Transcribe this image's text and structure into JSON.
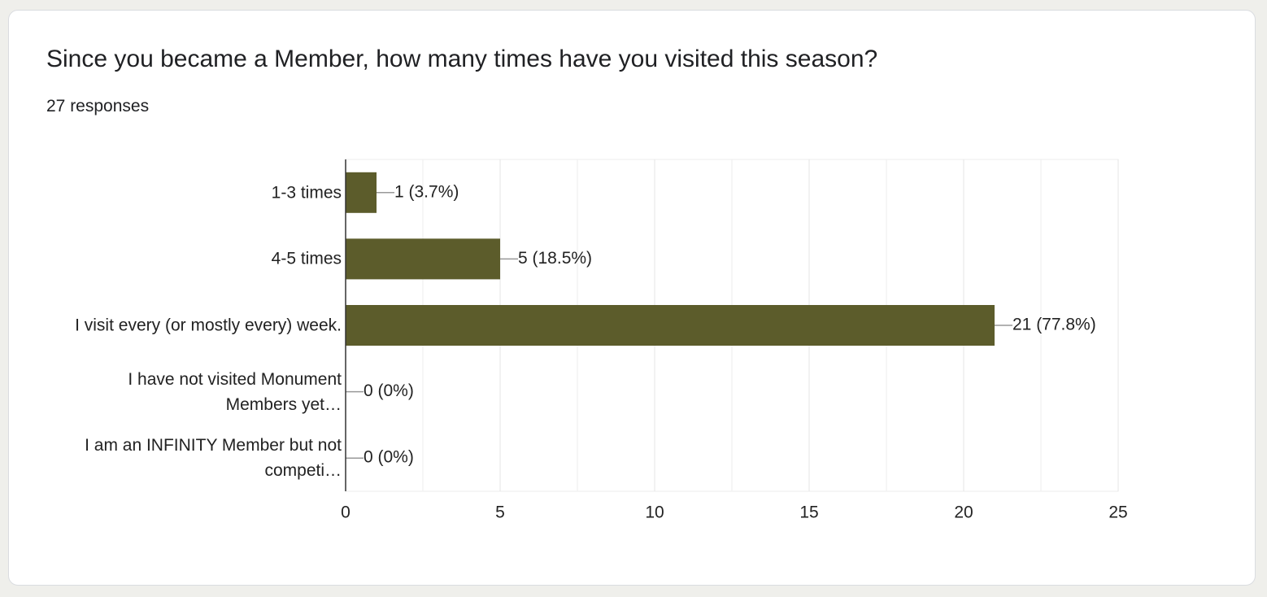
{
  "chart_data": {
    "type": "bar",
    "orientation": "horizontal",
    "title": "Since you became a Member, how many times have you visited this season?",
    "subtitle": "27 responses",
    "categories": [
      "1-3 times",
      "4-5 times",
      "I visit every (or mostly every) week.",
      "I have not visited Monument Members yet…",
      "I am an INFINITY Member but not competi…"
    ],
    "values": [
      1,
      5,
      21,
      0,
      0
    ],
    "value_labels": [
      "1 (3.7%)",
      "5 (18.5%)",
      "21 (77.8%)",
      "0 (0%)",
      "0 (0%)"
    ],
    "color": "#5c5c2b",
    "xlim": [
      0,
      25
    ],
    "xticks": [
      0,
      5,
      10,
      15,
      20,
      25
    ],
    "grid": true
  }
}
